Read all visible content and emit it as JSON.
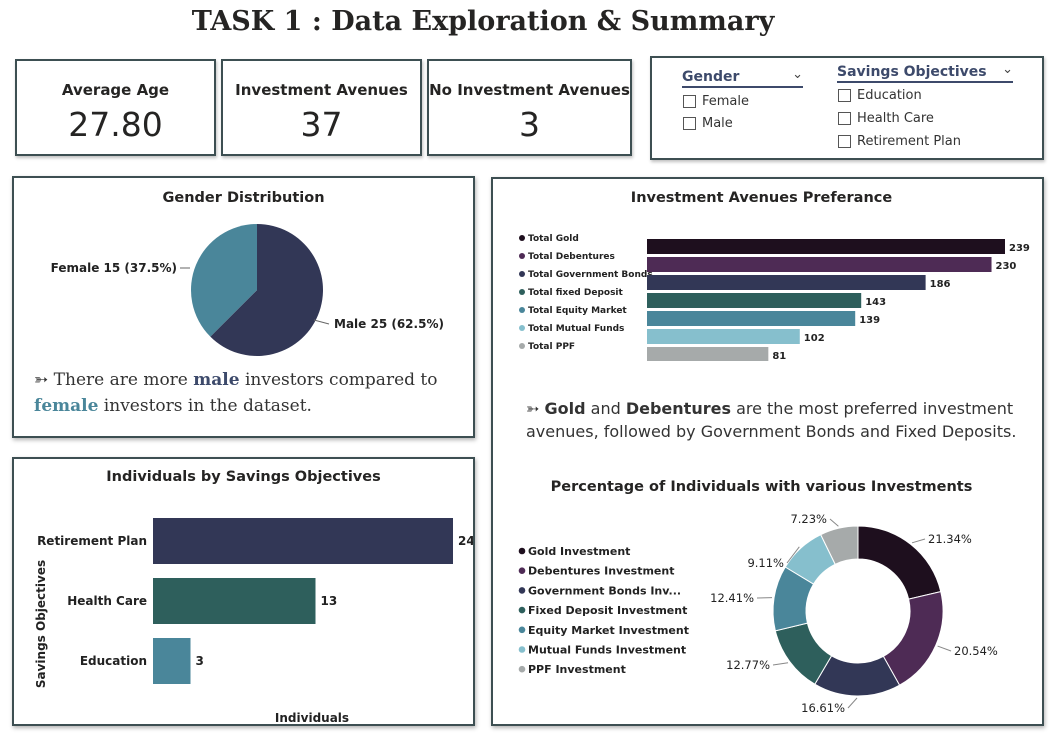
{
  "title": "TASK 1 : Data Exploration & Summary",
  "kpis": [
    {
      "label": "Average Age",
      "value": "27.80"
    },
    {
      "label": "Investment Avenues",
      "value": "37"
    },
    {
      "label": "No Investment Avenues",
      "value": "3"
    }
  ],
  "slicers": {
    "gender": {
      "title": "Gender",
      "options": [
        "Female",
        "Male"
      ]
    },
    "savings": {
      "title": "Savings Objectives",
      "options": [
        "Education",
        "Health Care",
        "Retirement Plan"
      ]
    }
  },
  "gender_panel": {
    "title": "Gender Distribution",
    "female_label": "Female 15 (37.5%)",
    "male_label": "Male 25 (62.5%)",
    "note": {
      "arrow": "➳",
      "p1": " There are more ",
      "b1": "male",
      "p2": " investors compared to ",
      "b2": "female",
      "p3": " investors in the dataset."
    }
  },
  "savings_panel": {
    "title": "Individuals by Savings Objectives",
    "ylabel": "Savings Objectives",
    "xlabel": "Individuals"
  },
  "avenues_panel": {
    "title": "Investment Avenues Preferance",
    "note": {
      "arrow": "➳",
      "b1": "Gold",
      "p1": " and ",
      "b2": "Debentures",
      "p2": " are the most preferred investment avenues, followed by Government Bonds and Fixed Deposits."
    }
  },
  "donut_panel": {
    "title": "Percentage of Individuals with various Investments"
  },
  "colors": {
    "dark": "#1e0f1e",
    "purple": "#4e2b55",
    "navy": "#323756",
    "teal": "#2e5f5c",
    "steel": "#4a869a",
    "lightblue": "#86bfcd",
    "grey": "#a6aaaa",
    "border": "#3d4f52"
  },
  "chart_data": [
    {
      "type": "pie",
      "title": "Gender Distribution",
      "categories": [
        "Female",
        "Male"
      ],
      "values": [
        15,
        25
      ],
      "percent": [
        37.5,
        62.5
      ],
      "colors": [
        "#4a869a",
        "#323756"
      ]
    },
    {
      "type": "bar",
      "title": "Individuals by Savings Objectives",
      "categories": [
        "Retirement Plan",
        "Health Care",
        "Education"
      ],
      "values": [
        24,
        13,
        3
      ],
      "colors": [
        "#323756",
        "#2e5f5c",
        "#4a869a"
      ],
      "xlabel": "Individuals",
      "ylabel": "Savings Objectives"
    },
    {
      "type": "bar",
      "title": "Investment Avenues Preferance",
      "categories": [
        "Total Gold",
        "Total Debentures",
        "Total Government Bonds",
        "Total fixed Deposit",
        "Total Equity Market",
        "Total Mutual Funds",
        "Total PPF"
      ],
      "values": [
        239,
        230,
        186,
        143,
        139,
        102,
        81
      ],
      "colors": [
        "#1e0f1e",
        "#4e2b55",
        "#323756",
        "#2e5f5c",
        "#4a869a",
        "#86bfcd",
        "#a6aaaa"
      ]
    },
    {
      "type": "pie",
      "subtype": "donut",
      "title": "Percentage of Individuals with various Investments",
      "categories": [
        "Gold Investment",
        "Debentures Investment",
        "Government Bonds Inv...",
        "Fixed Deposit Investment",
        "Equity Market Investment",
        "Mutual Funds Investment",
        "PPF Investment"
      ],
      "values": [
        21.34,
        20.54,
        16.61,
        12.77,
        12.41,
        9.11,
        7.23
      ],
      "labels": [
        "21.34%",
        "20.54%",
        "16.61%",
        "12.77%",
        "12.41%",
        "9.11%",
        "7.23%"
      ],
      "colors": [
        "#1e0f1e",
        "#4e2b55",
        "#323756",
        "#2e5f5c",
        "#4a869a",
        "#86bfcd",
        "#a6aaaa"
      ]
    }
  ]
}
